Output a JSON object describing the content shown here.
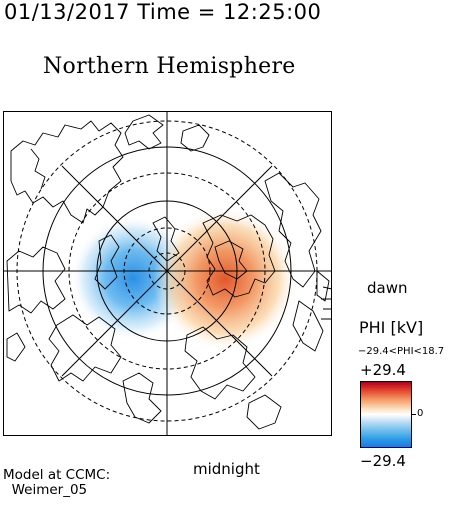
{
  "header": {
    "datetime": "01/13/2017 Time = 12:25:00",
    "hemisphere": "Northern Hemisphere"
  },
  "map": {
    "projection": "polar-stereographic",
    "labels": {
      "dawn": "dawn",
      "midnight": "midnight"
    },
    "potential_pattern": {
      "negative_cell_side": "dusk",
      "positive_cell_side": "dawn",
      "colors": {
        "negative": "#2b9be8",
        "positive": "#e05a2a",
        "zero": "#ffffff"
      }
    }
  },
  "legend": {
    "title": "PHI [kV]",
    "range_text": "−29.4<PHI<18.7",
    "max_label": "+29.4",
    "zero_label": "0",
    "min_label": "−29.4"
  },
  "credit": {
    "line1": "Model at CCMC:",
    "line2": "Weimer_05"
  }
}
